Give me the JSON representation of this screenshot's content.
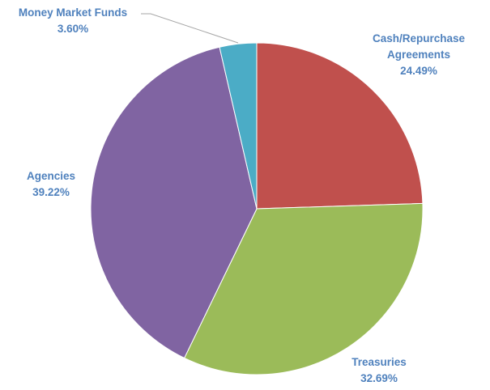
{
  "chart_data": {
    "type": "pie",
    "categories": [
      "Cash/Repurchase Agreements",
      "Treasuries",
      "Agencies",
      "Money Market Funds"
    ],
    "values": [
      24.49,
      32.69,
      39.22,
      3.6
    ],
    "value_labels": [
      "24.49%",
      "32.69%",
      "39.22%",
      "3.60%"
    ],
    "colors": [
      "#c0504d",
      "#9bbb59",
      "#8064a2",
      "#4bacc6"
    ]
  }
}
